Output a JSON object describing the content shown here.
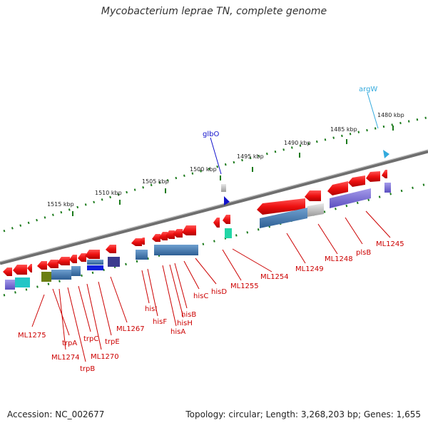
{
  "title": "Mycobacterium leprae TN, complete genome",
  "footer": {
    "accession": "Accession: NC_002677",
    "topology": "Topology: circular; Length: 3,268,203 bp; Genes: 1,655"
  },
  "colors": {
    "backbone": "#888888",
    "ticks": "#1b7a1b",
    "cds": "#ee1111",
    "gene_label": "#cc0000",
    "rna_label": "#1111cc",
    "trna_label": "#33aadd"
  },
  "scale": {
    "labels": [
      "1515 kbp",
      "1510 kbp",
      "1505 kbp",
      "1500 kbp",
      "1495 kbp",
      "1490 kbp",
      "1485 kbp",
      "1480 kbp"
    ]
  },
  "genes": [
    {
      "label": "ML1275",
      "color": "#cc0000"
    },
    {
      "label": "trpA",
      "color": "#cc0000"
    },
    {
      "label": "ML1274",
      "color": "#cc0000"
    },
    {
      "label": "trpB",
      "color": "#cc0000"
    },
    {
      "label": "trpC",
      "color": "#cc0000"
    },
    {
      "label": "ML1270",
      "color": "#cc0000"
    },
    {
      "label": "trpE",
      "color": "#cc0000"
    },
    {
      "label": "ML1267",
      "color": "#cc0000"
    },
    {
      "label": "hisI",
      "color": "#cc0000"
    },
    {
      "label": "hisF",
      "color": "#cc0000"
    },
    {
      "label": "hisA",
      "color": "#cc0000"
    },
    {
      "label": "hisH",
      "color": "#cc0000"
    },
    {
      "label": "hisB",
      "color": "#cc0000"
    },
    {
      "label": "hisC",
      "color": "#cc0000"
    },
    {
      "label": "hisD",
      "color": "#cc0000"
    },
    {
      "label": "ML1255",
      "color": "#cc0000"
    },
    {
      "label": "ML1254",
      "color": "#cc0000"
    },
    {
      "label": "ML1249",
      "color": "#cc0000"
    },
    {
      "label": "ML1248",
      "color": "#cc0000"
    },
    {
      "label": "plsB",
      "color": "#cc0000"
    },
    {
      "label": "ML1245",
      "color": "#cc0000"
    },
    {
      "label": "glbO",
      "color": "#1111cc"
    },
    {
      "label": "argW",
      "color": "#33aadd"
    }
  ]
}
